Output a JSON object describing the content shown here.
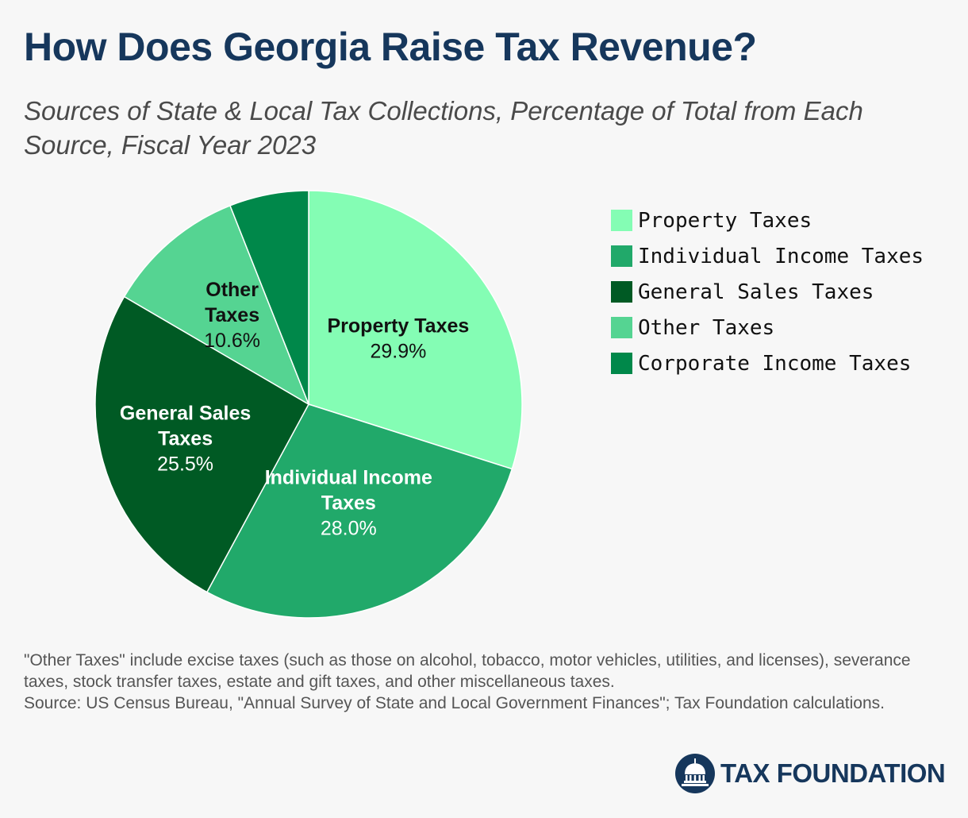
{
  "header": {
    "title": "How Does Georgia Raise Tax Revenue?",
    "subtitle": "Sources of State & Local Tax Collections, Percentage of Total from Each Source, Fiscal Year 2023"
  },
  "chart_data": {
    "type": "pie",
    "title": "How Does Georgia Raise Tax Revenue?",
    "subtitle": "Sources of State & Local Tax Collections, Percentage of Total from Each Source, Fiscal Year 2023",
    "legend_position": "right",
    "slices": [
      {
        "label": "Property Taxes",
        "value": 29.9,
        "display": "29.9%",
        "color": "#84fdb4",
        "text_color": "#111111",
        "slice_label": [
          "Property Taxes"
        ]
      },
      {
        "label": "Individual Income Taxes",
        "value": 28.0,
        "display": "28.0%",
        "color": "#21a96a",
        "text_color": "#ffffff",
        "slice_label": [
          "Individual Income",
          "Taxes"
        ]
      },
      {
        "label": "General Sales Taxes",
        "value": 25.5,
        "display": "25.5%",
        "color": "#005a24",
        "text_color": "#ffffff",
        "slice_label": [
          "General Sales",
          "Taxes"
        ]
      },
      {
        "label": "Other Taxes",
        "value": 10.6,
        "display": "10.6%",
        "color": "#55d492",
        "text_color": "#111111",
        "slice_label": [
          "Other",
          "Taxes"
        ]
      },
      {
        "label": "Corporate Income Taxes",
        "value": 6.0,
        "display": "",
        "color": "#00884a",
        "text_color": "#ffffff",
        "slice_label": []
      }
    ]
  },
  "footnote": {
    "note": "\"Other Taxes\" include excise taxes (such as those on alcohol, tobacco, motor vehicles, utilities, and licenses), severance taxes, stock transfer taxes, estate and gift taxes, and other miscellaneous taxes.",
    "source": "Source: US Census Bureau, \"Annual Survey of State and Local Government Finances\"; Tax Foundation calculations."
  },
  "logo": {
    "text": "TAX FOUNDATION",
    "icon": "capitol-dome-icon",
    "color": "#16375c"
  }
}
